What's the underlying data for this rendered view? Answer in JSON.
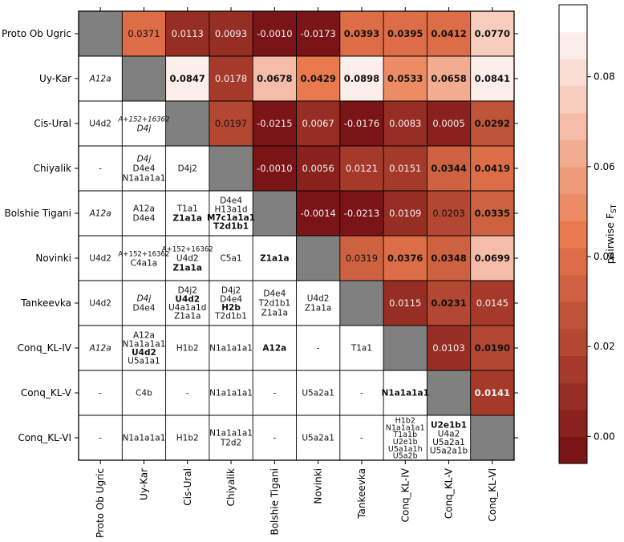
{
  "chart_data": {
    "type": "heatmap",
    "title": "",
    "legend_label_main": "pairwise F",
    "legend_label_sub": "ST",
    "legend_ticks": [
      "0.00",
      "0.02",
      "0.04",
      "0.06",
      "0.08"
    ],
    "legend_tick_values": [
      0.0,
      0.02,
      0.04,
      0.06,
      0.08
    ],
    "legend_range": [
      -0.006,
      0.096
    ],
    "legend_steps": 17,
    "populations": [
      "Proto Ob Ugric",
      "Uy-Kar",
      "Cis-Ural",
      "Chiyalik",
      "Bolshie Tigani",
      "Novinki",
      "Tankeevka",
      "Conq_KL-IV",
      "Conq_KL-V",
      "Conq_KL-VI"
    ],
    "colors": {
      "diagonal": "#808080",
      "low": "#7b1416",
      "mid": "#ea7a4e",
      "high": "#ffffff",
      "grid": "#000000"
    },
    "fst": [
      [
        null,
        0.0371,
        0.0113,
        0.0093,
        -0.001,
        -0.0173,
        0.0393,
        0.0395,
        0.0412,
        0.077
      ],
      [
        null,
        null,
        0.0847,
        0.0178,
        0.0678,
        0.0429,
        0.0898,
        0.0533,
        0.0658,
        0.0841
      ],
      [
        null,
        null,
        null,
        0.0197,
        -0.0215,
        0.0067,
        -0.0176,
        0.0083,
        0.0005,
        0.0292
      ],
      [
        null,
        null,
        null,
        null,
        -0.001,
        0.0056,
        0.0121,
        0.0151,
        0.0344,
        0.0419
      ],
      [
        null,
        null,
        null,
        null,
        null,
        -0.0014,
        -0.0213,
        0.0109,
        0.0203,
        0.0335
      ],
      [
        null,
        null,
        null,
        null,
        null,
        null,
        0.0319,
        0.0376,
        0.0348,
        0.0699
      ],
      [
        null,
        null,
        null,
        null,
        null,
        null,
        null,
        0.0115,
        0.0231,
        0.0145
      ],
      [
        null,
        null,
        null,
        null,
        null,
        null,
        null,
        null,
        0.0103,
        0.019
      ],
      [
        null,
        null,
        null,
        null,
        null,
        null,
        null,
        null,
        null,
        0.0141
      ]
    ],
    "fst_labels": [
      [
        null,
        "0.0371",
        "0.0113",
        "0.0093",
        "-0.0010",
        "-0.0173",
        "0.0393",
        "0.0395",
        "0.0412",
        "0.0770"
      ],
      [
        null,
        null,
        "0.0847",
        "0.0178",
        "0.0678",
        "0.0429",
        "0.0898",
        "0.0533",
        "0.0658",
        "0.0841"
      ],
      [
        null,
        null,
        null,
        "0.0197",
        "-0.0215",
        "0.0067",
        "-0.0176",
        "0.0083",
        "0.0005",
        "0.0292"
      ],
      [
        null,
        null,
        null,
        null,
        "-0.0010",
        "0.0056",
        "0.0121",
        "0.0151",
        "0.0344",
        "0.0419"
      ],
      [
        null,
        null,
        null,
        null,
        null,
        "-0.0014",
        "-0.0213",
        "0.0109",
        "0.0203",
        "0.0335"
      ],
      [
        null,
        null,
        null,
        null,
        null,
        null,
        "0.0319",
        "0.0376",
        "0.0348",
        "0.0699"
      ],
      [
        null,
        null,
        null,
        null,
        null,
        null,
        null,
        "0.0115",
        "0.0231",
        "0.0145"
      ],
      [
        null,
        null,
        null,
        null,
        null,
        null,
        null,
        null,
        "0.0103",
        "0.0190"
      ],
      [
        null,
        null,
        null,
        null,
        null,
        null,
        null,
        null,
        null,
        "0.0141"
      ]
    ],
    "fst_bold": [
      [
        false,
        false,
        false,
        false,
        false,
        false,
        true,
        true,
        true,
        true
      ],
      [
        false,
        false,
        true,
        false,
        true,
        true,
        true,
        true,
        true,
        true
      ],
      [
        false,
        false,
        false,
        false,
        false,
        false,
        false,
        false,
        false,
        true
      ],
      [
        false,
        false,
        false,
        false,
        false,
        false,
        false,
        false,
        true,
        true
      ],
      [
        false,
        false,
        false,
        false,
        false,
        false,
        false,
        false,
        false,
        true
      ],
      [
        false,
        false,
        false,
        false,
        false,
        false,
        false,
        true,
        true,
        true
      ],
      [
        false,
        false,
        false,
        false,
        false,
        false,
        false,
        false,
        true,
        false
      ],
      [
        false,
        false,
        false,
        false,
        false,
        false,
        false,
        false,
        false,
        true
      ],
      [
        false,
        false,
        false,
        false,
        false,
        false,
        false,
        false,
        false,
        true
      ]
    ],
    "haplogroups": [
      {
        "row": 1,
        "col": 0,
        "lines": [
          {
            "t": "A12a",
            "s": "i"
          }
        ]
      },
      {
        "row": 2,
        "col": 0,
        "lines": [
          {
            "t": "U4d2",
            "s": "n"
          }
        ]
      },
      {
        "row": 2,
        "col": 1,
        "lines": [
          {
            "t": "A+152+16362",
            "s": "i"
          },
          {
            "t": "D4j",
            "s": "i"
          }
        ]
      },
      {
        "row": 3,
        "col": 0,
        "lines": [
          {
            "t": "-",
            "s": "n"
          }
        ]
      },
      {
        "row": 3,
        "col": 1,
        "lines": [
          {
            "t": "D4j",
            "s": "i"
          },
          {
            "t": "D4e4",
            "s": "n"
          },
          {
            "t": "N1a1a1a1",
            "s": "n"
          }
        ]
      },
      {
        "row": 3,
        "col": 2,
        "lines": [
          {
            "t": "D4j2",
            "s": "n"
          }
        ]
      },
      {
        "row": 4,
        "col": 0,
        "lines": [
          {
            "t": "A12a",
            "s": "i"
          }
        ]
      },
      {
        "row": 4,
        "col": 1,
        "lines": [
          {
            "t": "A12a",
            "s": "n"
          },
          {
            "t": "D4e4",
            "s": "n"
          }
        ]
      },
      {
        "row": 4,
        "col": 2,
        "lines": [
          {
            "t": "T1a1",
            "s": "n"
          },
          {
            "t": "Z1a1a",
            "s": "b"
          }
        ]
      },
      {
        "row": 4,
        "col": 3,
        "lines": [
          {
            "t": "D4e4",
            "s": "n"
          },
          {
            "t": "H13a1d",
            "s": "n"
          },
          {
            "t": "M7c1a1a1",
            "s": "b"
          },
          {
            "t": "T2d1b1",
            "s": "b"
          }
        ]
      },
      {
        "row": 5,
        "col": 0,
        "lines": [
          {
            "t": "U4d2",
            "s": "n"
          }
        ]
      },
      {
        "row": 5,
        "col": 1,
        "lines": [
          {
            "t": "A+152+16362",
            "s": "n"
          },
          {
            "t": "C4a1a",
            "s": "n"
          }
        ]
      },
      {
        "row": 5,
        "col": 2,
        "lines": [
          {
            "t": "A+152+16362",
            "s": "n"
          },
          {
            "t": "U4d2",
            "s": "n"
          },
          {
            "t": "Z1a1a",
            "s": "b"
          }
        ]
      },
      {
        "row": 5,
        "col": 3,
        "lines": [
          {
            "t": "C5a1",
            "s": "n"
          }
        ]
      },
      {
        "row": 5,
        "col": 4,
        "lines": [
          {
            "t": "Z1a1a",
            "s": "b"
          }
        ]
      },
      {
        "row": 6,
        "col": 0,
        "lines": [
          {
            "t": "U4d2",
            "s": "n"
          }
        ]
      },
      {
        "row": 6,
        "col": 1,
        "lines": [
          {
            "t": "D4j",
            "s": "i"
          },
          {
            "t": "D4e4",
            "s": "n"
          }
        ]
      },
      {
        "row": 6,
        "col": 2,
        "lines": [
          {
            "t": "D4j2",
            "s": "n"
          },
          {
            "t": "U4d2",
            "s": "b"
          },
          {
            "t": "U4a1a1d",
            "s": "n"
          },
          {
            "t": "Z1a1a",
            "s": "n"
          }
        ]
      },
      {
        "row": 6,
        "col": 3,
        "lines": [
          {
            "t": "D4j2",
            "s": "n"
          },
          {
            "t": "D4e4",
            "s": "n"
          },
          {
            "t": "H2b",
            "s": "b"
          },
          {
            "t": "T2d1b1",
            "s": "n"
          }
        ]
      },
      {
        "row": 6,
        "col": 4,
        "lines": [
          {
            "t": "D4e4",
            "s": "n"
          },
          {
            "t": "T2d1b1",
            "s": "n"
          },
          {
            "t": "Z1a1a",
            "s": "n"
          }
        ]
      },
      {
        "row": 6,
        "col": 5,
        "lines": [
          {
            "t": "U4d2",
            "s": "n"
          },
          {
            "t": "Z1a1a",
            "s": "n"
          }
        ]
      },
      {
        "row": 7,
        "col": 0,
        "lines": [
          {
            "t": "A12a",
            "s": "i"
          }
        ]
      },
      {
        "row": 7,
        "col": 1,
        "lines": [
          {
            "t": "A12a",
            "s": "n"
          },
          {
            "t": "N1a1a1a1",
            "s": "n"
          },
          {
            "t": "U4d2",
            "s": "b"
          },
          {
            "t": "U5a1a1",
            "s": "n"
          }
        ]
      },
      {
        "row": 7,
        "col": 2,
        "lines": [
          {
            "t": "H1b2",
            "s": "n"
          }
        ]
      },
      {
        "row": 7,
        "col": 3,
        "lines": [
          {
            "t": "N1a1a1a1",
            "s": "n"
          }
        ]
      },
      {
        "row": 7,
        "col": 4,
        "lines": [
          {
            "t": "A12a",
            "s": "b"
          }
        ]
      },
      {
        "row": 7,
        "col": 5,
        "lines": [
          {
            "t": "-",
            "s": "n"
          }
        ]
      },
      {
        "row": 7,
        "col": 6,
        "lines": [
          {
            "t": "T1a1",
            "s": "n"
          }
        ]
      },
      {
        "row": 8,
        "col": 0,
        "lines": [
          {
            "t": "-",
            "s": "n"
          }
        ]
      },
      {
        "row": 8,
        "col": 1,
        "lines": [
          {
            "t": "C4b",
            "s": "n"
          }
        ]
      },
      {
        "row": 8,
        "col": 2,
        "lines": [
          {
            "t": "-",
            "s": "n"
          }
        ]
      },
      {
        "row": 8,
        "col": 3,
        "lines": [
          {
            "t": "N1a1a1a1",
            "s": "n"
          }
        ]
      },
      {
        "row": 8,
        "col": 4,
        "lines": [
          {
            "t": "-",
            "s": "n"
          }
        ]
      },
      {
        "row": 8,
        "col": 5,
        "lines": [
          {
            "t": "U5a2a1",
            "s": "n"
          }
        ]
      },
      {
        "row": 8,
        "col": 6,
        "lines": [
          {
            "t": "-",
            "s": "n"
          }
        ]
      },
      {
        "row": 8,
        "col": 7,
        "lines": [
          {
            "t": "N1a1a1a1",
            "s": "b"
          }
        ]
      },
      {
        "row": 9,
        "col": 0,
        "lines": [
          {
            "t": "-",
            "s": "n"
          }
        ]
      },
      {
        "row": 9,
        "col": 1,
        "lines": [
          {
            "t": "N1a1a1a1",
            "s": "n"
          }
        ]
      },
      {
        "row": 9,
        "col": 2,
        "lines": [
          {
            "t": "H1b2",
            "s": "n"
          }
        ]
      },
      {
        "row": 9,
        "col": 3,
        "lines": [
          {
            "t": "N1a1a1a1",
            "s": "n"
          },
          {
            "t": "T2d2",
            "s": "n"
          }
        ]
      },
      {
        "row": 9,
        "col": 4,
        "lines": [
          {
            "t": "-",
            "s": "n"
          }
        ]
      },
      {
        "row": 9,
        "col": 5,
        "lines": [
          {
            "t": "U5a2a1",
            "s": "n"
          }
        ]
      },
      {
        "row": 9,
        "col": 6,
        "lines": [
          {
            "t": "-",
            "s": "n"
          }
        ]
      },
      {
        "row": 9,
        "col": 7,
        "lines": [
          {
            "t": "H1b2",
            "s": "n"
          },
          {
            "t": "N1a1a1a1",
            "s": "n"
          },
          {
            "t": "T1a1b",
            "s": "n"
          },
          {
            "t": "U2e1b",
            "s": "n"
          },
          {
            "t": "U5a1a1h",
            "s": "n"
          },
          {
            "t": "U5a2b",
            "s": "n"
          }
        ]
      },
      {
        "row": 9,
        "col": 8,
        "lines": [
          {
            "t": "U2e1b1",
            "s": "b"
          },
          {
            "t": "U4a2",
            "s": "n"
          },
          {
            "t": "U5a2a1",
            "s": "n"
          },
          {
            "t": "U5a2a1b",
            "s": "n"
          }
        ]
      }
    ]
  }
}
